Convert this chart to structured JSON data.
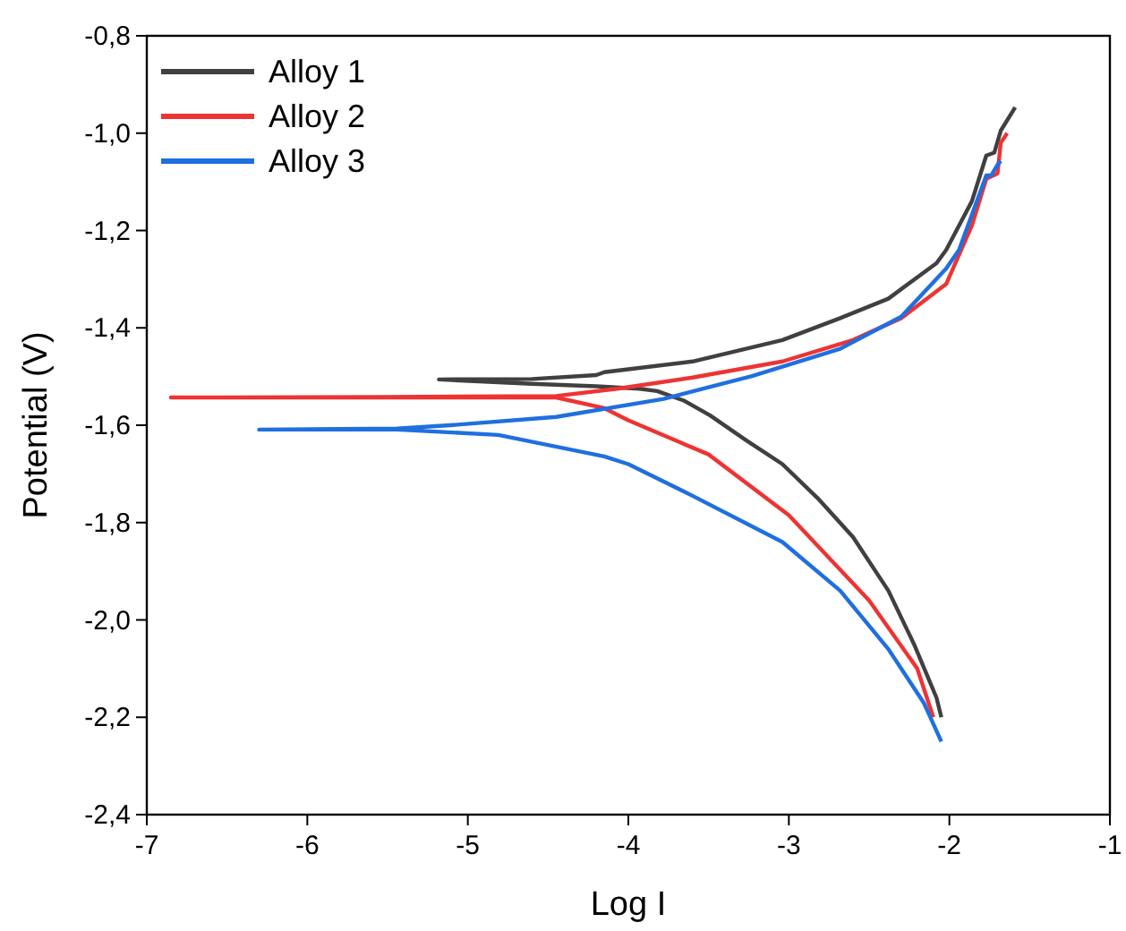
{
  "chart_data": {
    "type": "line",
    "xlabel": "Log I",
    "ylabel": "Potential (V)",
    "xlim": [
      -7,
      -1
    ],
    "ylim": [
      -2.4,
      -0.8
    ],
    "xticks": [
      -7,
      -6,
      -5,
      -4,
      -3,
      -2,
      -1
    ],
    "yticks": [
      {
        "value": -2.4,
        "label": "-2,4"
      },
      {
        "value": -2.2,
        "label": "-2,2"
      },
      {
        "value": -2.0,
        "label": "-2,0"
      },
      {
        "value": -1.8,
        "label": "-1,8"
      },
      {
        "value": -1.6,
        "label": "-1,6"
      },
      {
        "value": -1.4,
        "label": "-1,4"
      },
      {
        "value": -1.2,
        "label": "-1,2"
      },
      {
        "value": -1.0,
        "label": "-1,0"
      },
      {
        "value": -0.8,
        "label": "-0,8"
      }
    ],
    "grid": false,
    "legend": "top left",
    "marker": "none",
    "line_style": "solid",
    "series": [
      {
        "name": "Alloy 1",
        "color": "#404040",
        "x": [
          -2.05,
          -2.08,
          -2.22,
          -2.38,
          -2.6,
          -2.82,
          -3.04,
          -3.27,
          -3.49,
          -3.65,
          -3.82,
          -3.93,
          -4.2,
          -4.6,
          -5.18,
          -4.6,
          -4.2,
          -4.15,
          -3.6,
          -3.04,
          -2.68,
          -2.38,
          -2.08,
          -2.02,
          -1.86,
          -1.77,
          -1.72,
          -1.68,
          -1.59
        ],
        "values": [
          -2.2,
          -2.16,
          -2.05,
          -1.94,
          -1.83,
          -1.75,
          -1.68,
          -1.63,
          -1.58,
          -1.55,
          -1.53,
          -1.525,
          -1.52,
          -1.515,
          -1.506,
          -1.505,
          -1.497,
          -1.491,
          -1.469,
          -1.425,
          -1.38,
          -1.34,
          -1.267,
          -1.24,
          -1.14,
          -1.046,
          -1.04,
          -0.995,
          -0.947
        ]
      },
      {
        "name": "Alloy 2",
        "color": "#ee3333",
        "x": [
          -2.1,
          -2.2,
          -2.5,
          -3.0,
          -3.5,
          -4.0,
          -4.15,
          -4.45,
          -5.5,
          -6.85,
          -5.5,
          -4.45,
          -4.07,
          -3.6,
          -3.04,
          -2.6,
          -2.3,
          -2.02,
          -1.86,
          -1.77,
          -1.7,
          -1.68,
          -1.64
        ],
        "values": [
          -2.2,
          -2.1,
          -1.96,
          -1.785,
          -1.66,
          -1.59,
          -1.565,
          -1.543,
          -1.543,
          -1.543,
          -1.542,
          -1.54,
          -1.525,
          -1.502,
          -1.469,
          -1.425,
          -1.38,
          -1.31,
          -1.19,
          -1.094,
          -1.083,
          -1.02,
          -1.0
        ]
      },
      {
        "name": "Alloy 3",
        "color": "#1f6fe0",
        "x": [
          -2.05,
          -2.16,
          -2.38,
          -2.68,
          -3.04,
          -3.6,
          -4.0,
          -4.15,
          -4.81,
          -5.44,
          -6.3,
          -5.44,
          -5.11,
          -4.45,
          -3.78,
          -3.23,
          -2.68,
          -2.3,
          -2.02,
          -1.94,
          -1.77,
          -1.74,
          -1.7,
          -1.68
        ],
        "values": [
          -2.25,
          -2.17,
          -2.06,
          -1.94,
          -1.84,
          -1.745,
          -1.68,
          -1.664,
          -1.62,
          -1.609,
          -1.609,
          -1.607,
          -1.6,
          -1.583,
          -1.546,
          -1.499,
          -1.443,
          -1.377,
          -1.278,
          -1.24,
          -1.087,
          -1.087,
          -1.065,
          -1.057
        ]
      }
    ]
  }
}
